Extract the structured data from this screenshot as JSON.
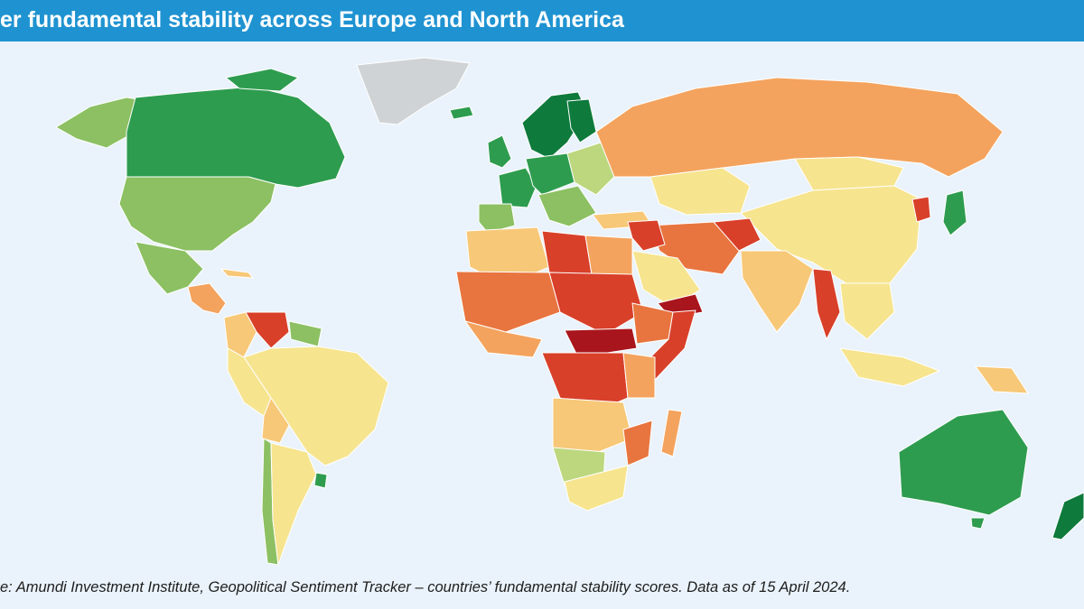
{
  "title": "er fundamental stability across Europe and North America",
  "source": "e: Amundi Investment Institute, Geopolitical Sentiment Tracker – countries’ fundamental stability scores. Data as of 15 April 2024.",
  "colors": {
    "background": "#eaf3fb",
    "title_bar": "#1f93d1",
    "very_high": "#0e7a3c",
    "high": "#2e9c4f",
    "mid_high": "#8cc063",
    "light_green": "#bcd77e",
    "mid": "#f6e48f",
    "mid_low": "#f7c878",
    "low": "#f3a35e",
    "lower": "#e8753f",
    "very_low": "#d8402a",
    "lowest": "#a9151c",
    "no_data": "#d0d3d6"
  }
}
